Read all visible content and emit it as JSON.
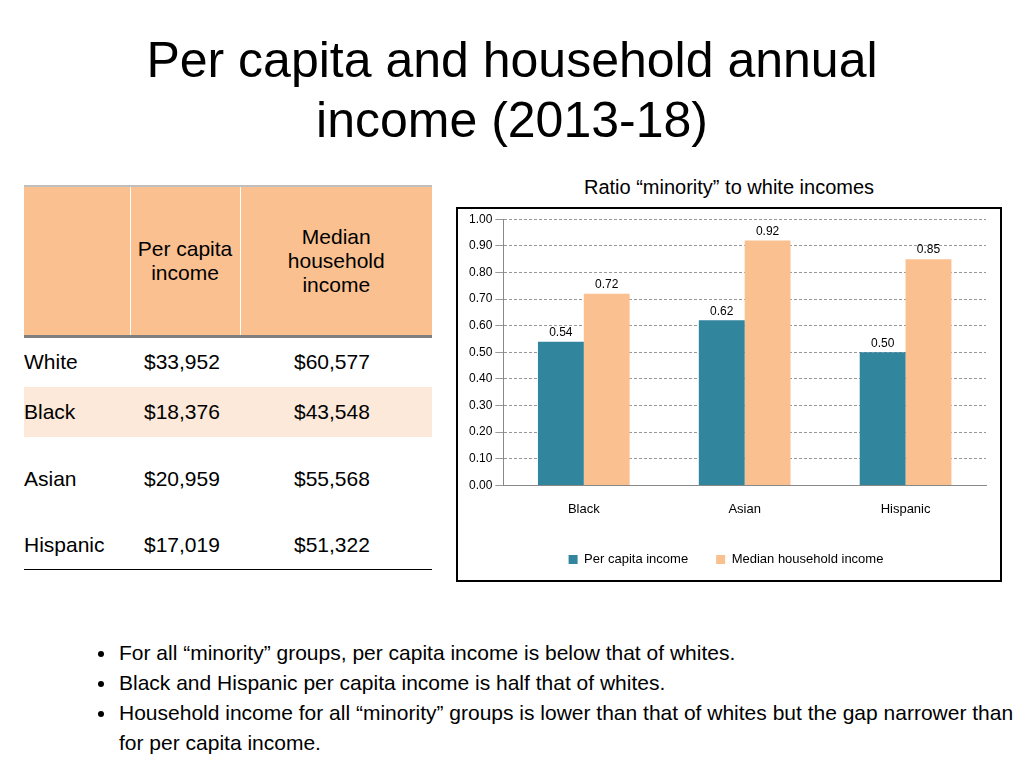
{
  "title": [
    "Per capita and household annual",
    "income (2013-18)"
  ],
  "table": {
    "columns": [
      "Per capita income",
      "Median household income"
    ],
    "rows": [
      {
        "label": "White",
        "values": [
          "$33,952",
          "$60,577"
        ]
      },
      {
        "label": "Black",
        "values": [
          "$18,376",
          "$43,548"
        ]
      },
      {
        "label": "Asian",
        "values": [
          "$20,959",
          "$55,568"
        ]
      },
      {
        "label": "Hispanic",
        "values": [
          "$17,019",
          "$51,322"
        ]
      }
    ]
  },
  "chart_data": {
    "type": "bar",
    "title": "Ratio “minority” to white incomes",
    "categories": [
      "Black",
      "Asian",
      "Hispanic"
    ],
    "series": [
      {
        "name": "Per capita income",
        "color": "#31859c",
        "values": [
          0.54,
          0.62,
          0.5
        ],
        "value_labels": [
          "0.54",
          "0.62",
          "0.50"
        ]
      },
      {
        "name": "Median household income",
        "color": "#fac090",
        "values": [
          0.72,
          0.92,
          0.85
        ],
        "value_labels": [
          "0.72",
          "0.92",
          "0.85"
        ]
      }
    ],
    "ylim": [
      0,
      1
    ],
    "yticks": [
      {
        "value": 0,
        "label": "0.00"
      },
      {
        "value": 0.1,
        "label": "0.10"
      },
      {
        "value": 0.2,
        "label": "0.20"
      },
      {
        "value": 0.3,
        "label": "0.30"
      },
      {
        "value": 0.4,
        "label": "0.40"
      },
      {
        "value": 0.5,
        "label": "0.50"
      },
      {
        "value": 0.6,
        "label": "0.60"
      },
      {
        "value": 0.7,
        "label": "0.70"
      },
      {
        "value": 0.8,
        "label": "0.80"
      },
      {
        "value": 0.9,
        "label": "0.90"
      },
      {
        "value": 1,
        "label": "1.00"
      }
    ],
    "grid": true,
    "legend": "bottom",
    "data_labels": true
  },
  "bullets": [
    "For all “minority” groups, per capita income is below that of whites.",
    "Black and Hispanic per capita income is half that of whites.",
    "Household income for all “minority” groups is lower than that of whites but the gap narrower than for per capita income."
  ]
}
